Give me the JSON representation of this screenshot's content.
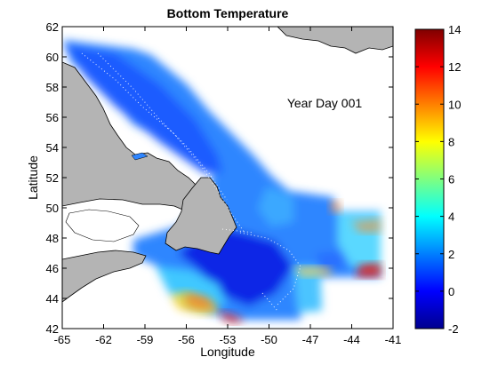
{
  "title": "Bottom Temperature",
  "annotation": "Year Day 001",
  "x_axis": {
    "label": "Longitude",
    "ticks": [
      -65,
      -62,
      -59,
      -56,
      -53,
      -50,
      -47,
      -44,
      -41
    ],
    "range": [
      -65,
      -41
    ]
  },
  "y_axis": {
    "label": "Latitude",
    "ticks": [
      42,
      44,
      46,
      48,
      50,
      52,
      54,
      56,
      58,
      60,
      62
    ],
    "range": [
      42,
      62
    ]
  },
  "colorbar": {
    "ticks": [
      -2,
      0,
      2,
      4,
      6,
      8,
      10,
      12,
      14
    ],
    "range": [
      -2,
      14
    ],
    "colormap": "jet"
  },
  "colors": {
    "land": "#b4b4b4",
    "no_data": "#ffffff",
    "cold": "#00008f",
    "warm": "#800000"
  }
}
